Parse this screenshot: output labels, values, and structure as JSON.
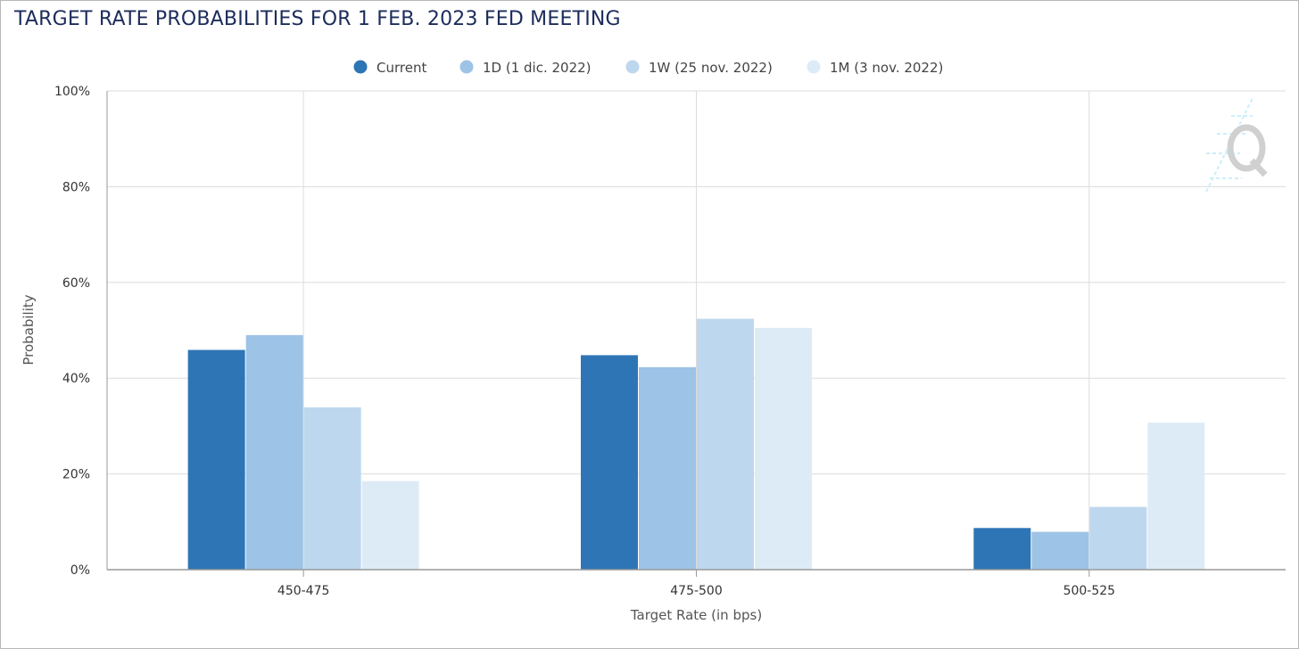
{
  "chart_data": {
    "type": "bar",
    "title": "TARGET RATE PROBABILITIES FOR 1 FEB. 2023 FED MEETING",
    "xlabel": "Target Rate (in bps)",
    "ylabel": "Probability",
    "ylim": [
      0,
      100
    ],
    "y_ticks": [
      "0%",
      "20%",
      "40%",
      "60%",
      "80%",
      "100%"
    ],
    "categories": [
      "450-475",
      "475-500",
      "500-525"
    ],
    "grid": true,
    "legend_position": "top-center",
    "series": [
      {
        "name": "Current",
        "color": "#2e75b6",
        "values": [
          45.9,
          44.8,
          8.7
        ]
      },
      {
        "name": "1D (1 dic. 2022)",
        "color": "#9dc3e6",
        "values": [
          49.0,
          42.3,
          7.9
        ]
      },
      {
        "name": "1W (25 nov. 2022)",
        "color": "#bdd7ee",
        "values": [
          33.9,
          52.4,
          13.1
        ]
      },
      {
        "name": "1M (3 nov. 2022)",
        "color": "#ddebf7",
        "values": [
          18.5,
          50.5,
          30.7
        ]
      }
    ]
  }
}
